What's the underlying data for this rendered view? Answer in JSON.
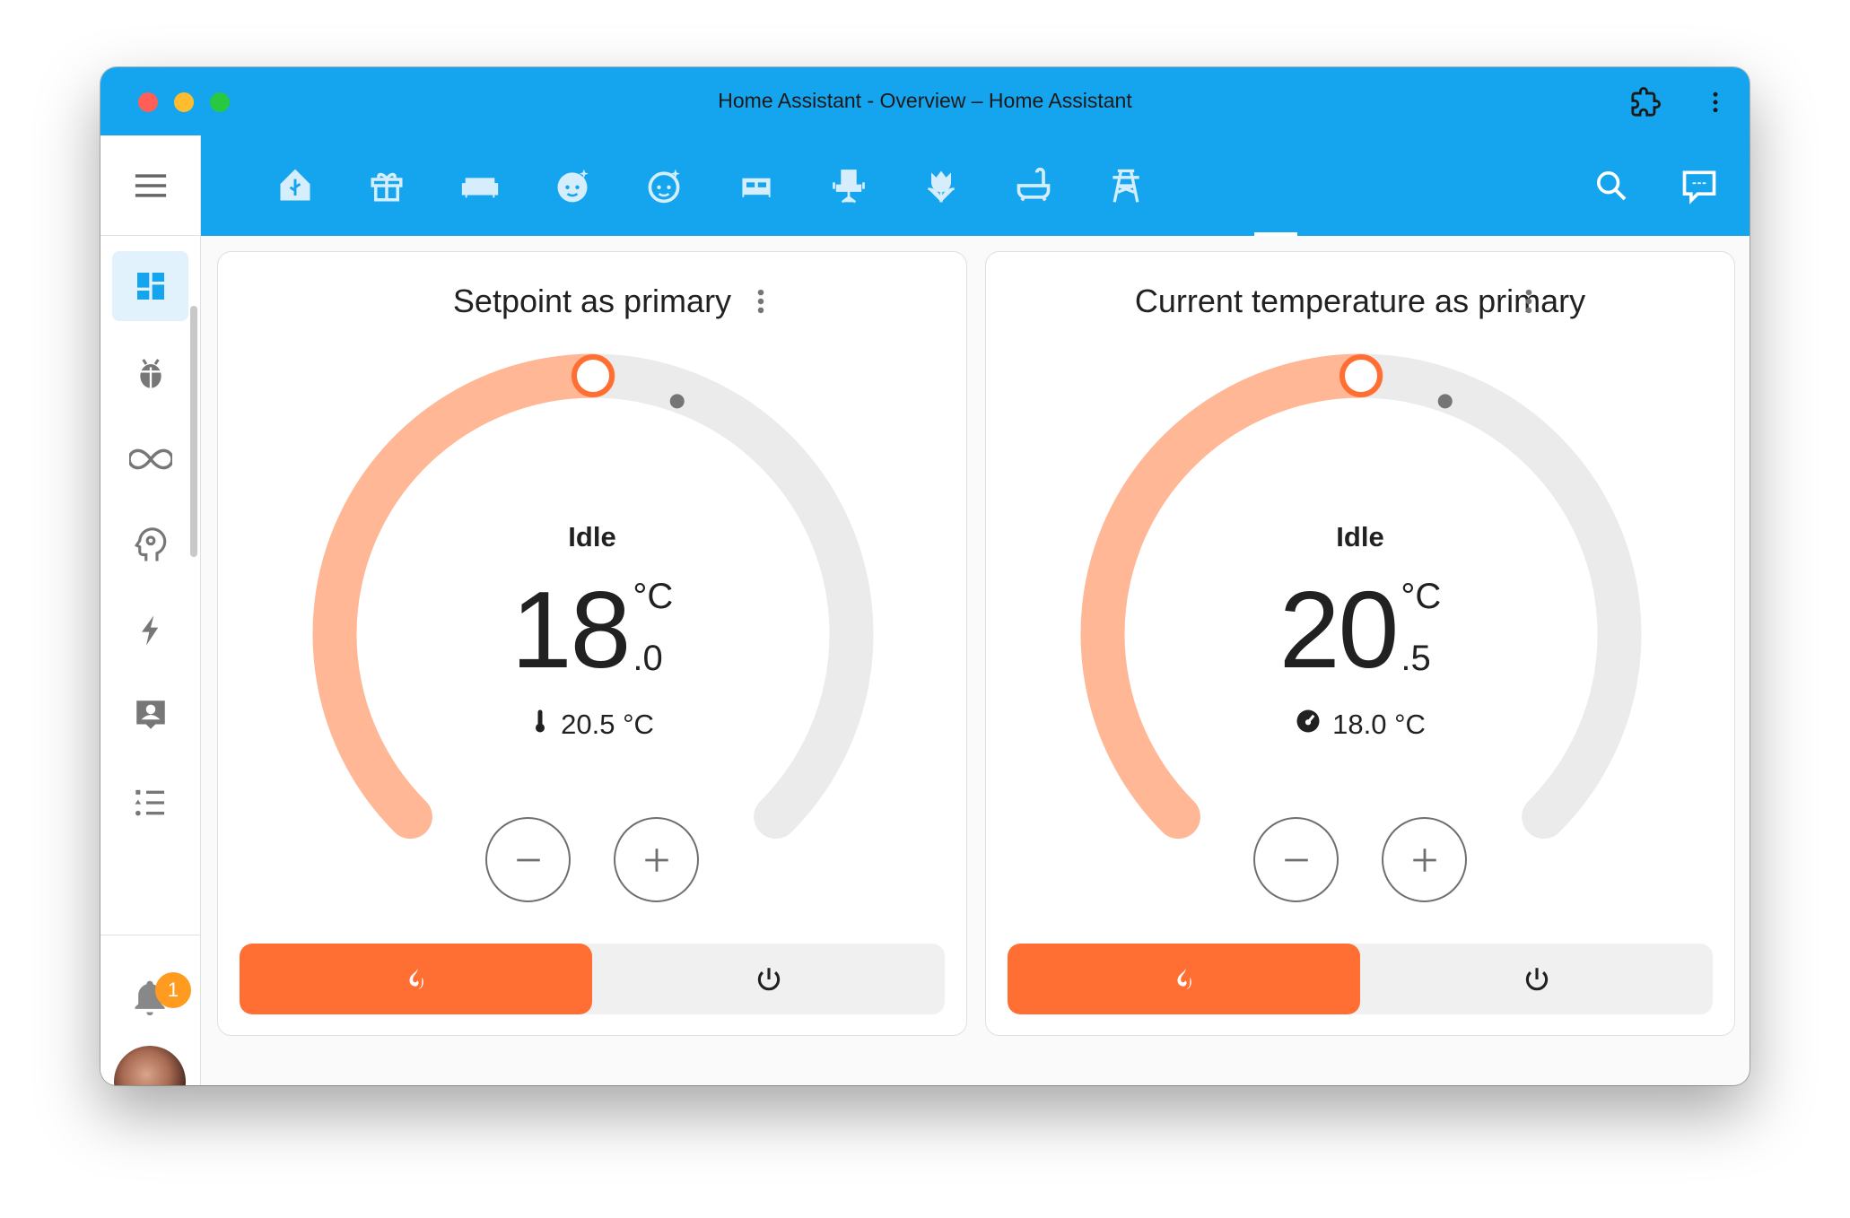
{
  "window": {
    "title": "Home Assistant - Overview – Home Assistant",
    "lights": [
      "#ff5f57",
      "#febc2e",
      "#28c840"
    ]
  },
  "toolbar": {
    "tabs": [
      "home-floorplan-icon",
      "gift-icon",
      "sofa-icon",
      "baby-face-icon",
      "face-icon",
      "bed-icon",
      "desk-chair-icon",
      "flower-tulip-icon",
      "bathtub-icon",
      "power-pylon-icon"
    ],
    "actions": [
      "search-icon",
      "assist-chat-icon",
      "more-vert-icon"
    ],
    "accent": "#15a5ef"
  },
  "sidebar": {
    "items": [
      "dashboard-icon",
      "bug-icon",
      "infinity-icon",
      "head-cog-icon",
      "lightning-icon",
      "account-box-icon",
      "format-list-icon"
    ],
    "notifications_count": "1"
  },
  "cards": [
    {
      "title": "Setpoint as primary",
      "action": "Idle",
      "primary_int": "18",
      "primary_unit": "°C",
      "primary_dec": ".0",
      "secondary_icon": "thermometer-icon",
      "secondary": "20.5 °C",
      "target": 18.0,
      "current": 20.5,
      "min": 1,
      "max": 35,
      "mode": "heat"
    },
    {
      "title": "Current temperature as primary",
      "action": "Idle",
      "primary_int": "20",
      "primary_unit": "°C",
      "primary_dec": ".5",
      "secondary_icon": "gauge-icon",
      "secondary": "18.0 °C",
      "target": 18.0,
      "current": 20.5,
      "min": 1,
      "max": 35,
      "mode": "heat"
    }
  ],
  "colors": {
    "heat": "#ff6f33",
    "heat_light": "#ffb796",
    "track": "#ebebeb"
  }
}
